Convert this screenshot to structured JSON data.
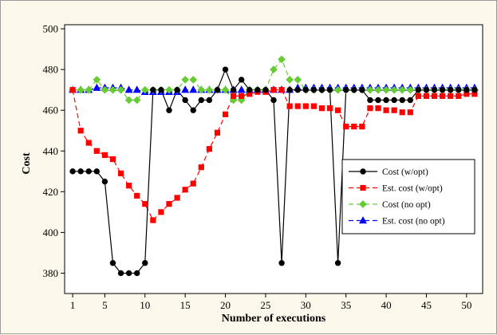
{
  "chart_data": {
    "type": "line",
    "title": "",
    "xlabel": "Number of executions",
    "ylabel": "Cost",
    "xlim": [
      0,
      52
    ],
    "ylim": [
      370,
      502
    ],
    "xticks": [
      1,
      5,
      10,
      15,
      20,
      25,
      30,
      35,
      40,
      45,
      50
    ],
    "yticks": [
      380,
      400,
      420,
      440,
      460,
      480,
      500
    ],
    "grid": false,
    "legend_position": "lower-right",
    "x": [
      1,
      2,
      3,
      4,
      5,
      6,
      7,
      8,
      9,
      10,
      11,
      12,
      13,
      14,
      15,
      16,
      17,
      18,
      19,
      20,
      21,
      22,
      23,
      24,
      25,
      26,
      27,
      28,
      29,
      30,
      31,
      32,
      33,
      34,
      35,
      36,
      37,
      38,
      39,
      40,
      41,
      42,
      43,
      44,
      45,
      46,
      47,
      48,
      49,
      50,
      51
    ],
    "series": [
      {
        "name": "Cost (w/opt)",
        "color": "#000000",
        "line_style": "solid",
        "marker": "circle",
        "values": [
          430,
          430,
          430,
          430,
          425,
          385,
          380,
          380,
          380,
          385,
          470,
          470,
          460,
          470,
          465,
          460,
          465,
          465,
          470,
          480,
          470,
          475,
          470,
          470,
          470,
          465,
          385,
          470,
          470,
          470,
          470,
          470,
          470,
          385,
          470,
          470,
          470,
          465,
          465,
          465,
          465,
          465,
          465,
          470,
          470,
          470,
          470,
          470,
          470,
          470,
          470
        ]
      },
      {
        "name": "Est. cost (w/opt)",
        "color": "#ff0000",
        "line_style": "dashed",
        "marker": "square",
        "values": [
          470,
          450,
          444,
          440,
          438,
          436,
          429,
          423,
          418,
          414,
          406,
          410,
          414,
          417,
          421,
          424,
          432,
          441,
          449,
          458,
          467,
          467,
          468,
          469,
          469,
          470,
          470,
          462,
          462,
          462,
          462,
          461,
          461,
          460,
          452,
          452,
          452,
          461,
          461,
          460,
          460,
          459,
          459,
          467,
          467,
          467,
          467,
          467,
          467,
          468,
          468
        ]
      },
      {
        "name": "Cost (no opt)",
        "color": "#66cc33",
        "line_style": "dashed",
        "marker": "diamond",
        "values": [
          470,
          470,
          470,
          475,
          470,
          470,
          470,
          465,
          465,
          470,
          470,
          470,
          470,
          470,
          475,
          475,
          470,
          470,
          470,
          470,
          465,
          465,
          470,
          470,
          470,
          480,
          485,
          475,
          475,
          470,
          470,
          470,
          470,
          470,
          470,
          470,
          470,
          470,
          470,
          470,
          470,
          470,
          470,
          470,
          470,
          470,
          470,
          470,
          470,
          470,
          470
        ]
      },
      {
        "name": "Est. cost (no opt)",
        "color": "#0000ff",
        "line_style": "dashed",
        "marker": "triangle",
        "values": [
          470,
          470,
          470,
          471,
          471,
          471,
          471,
          470,
          470,
          469,
          469,
          469,
          469,
          469,
          470,
          470,
          470,
          470,
          470,
          470,
          470,
          470,
          470,
          470,
          470,
          470,
          470,
          470,
          471,
          471,
          471,
          471,
          471,
          471,
          471,
          471,
          471,
          471,
          471,
          471,
          471,
          471,
          471,
          471,
          471,
          471,
          471,
          471,
          471,
          471,
          471
        ]
      }
    ]
  }
}
